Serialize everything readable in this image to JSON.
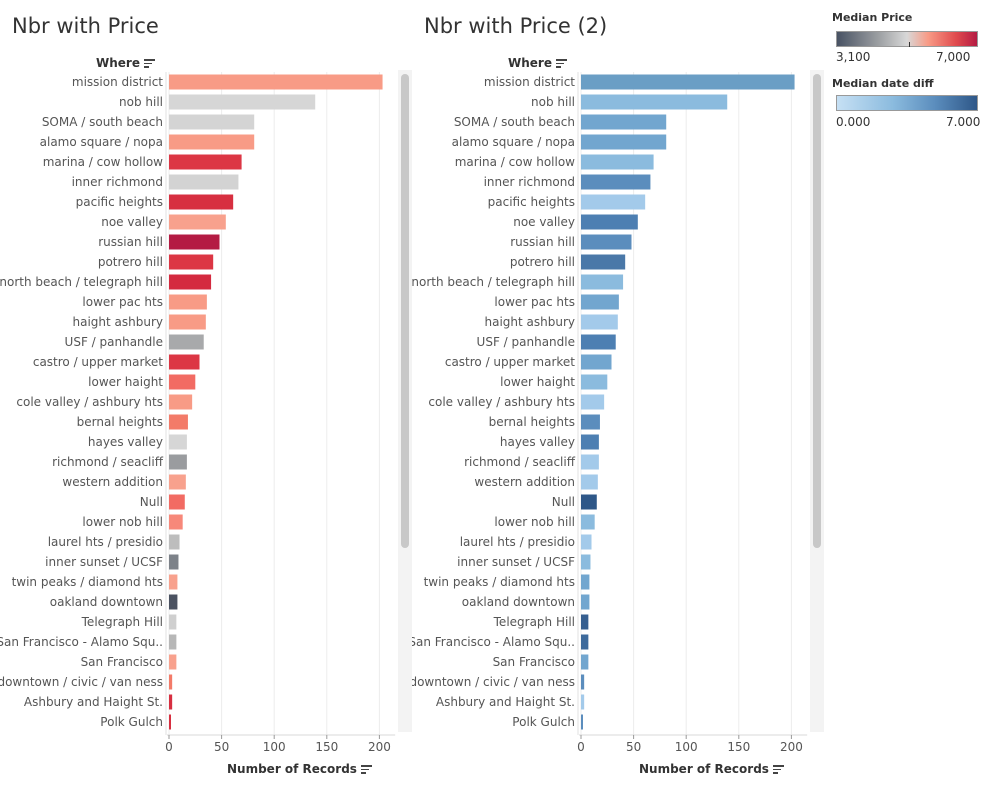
{
  "titles": {
    "left": "Nbr with Price",
    "right": "Nbr with Price (2)"
  },
  "row_header": "Where",
  "x_axis_title": "Number of Records",
  "legend_price": {
    "title": "Median Price",
    "min_label": "3,100",
    "max_label": "7,000"
  },
  "legend_date": {
    "title": "Median date diff",
    "min_label": "0.000",
    "max_label": "7.000"
  },
  "chart_data": [
    {
      "type": "bar",
      "orientation": "horizontal",
      "title": "Nbr with Price",
      "ylabel": "Where",
      "xlabel": "Number of Records",
      "xlim": [
        0,
        215
      ],
      "xticks": [
        0,
        50,
        100,
        150,
        200
      ],
      "color_by": "Median Price",
      "color_range": [
        3100,
        7000
      ],
      "categories": [
        "mission district",
        "nob hill",
        "SOMA / south beach",
        "alamo square / nopa",
        "marina / cow hollow",
        "inner richmond",
        "pacific heights",
        "noe valley",
        "russian hill",
        "potrero hill",
        "north beach / telegraph hill",
        "lower pac hts",
        "haight ashbury",
        "USF / panhandle",
        "castro / upper market",
        "lower haight",
        "cole valley / ashbury hts",
        "bernal heights",
        "hayes valley",
        "richmond / seacliff",
        "western addition",
        "Null",
        "lower nob hill",
        "laurel hts / presidio",
        "inner sunset / UCSF",
        "twin peaks / diamond hts",
        "oakland downtown",
        "Telegraph Hill",
        "San Francisco - Alamo Squ..",
        "San Francisco",
        "downtown / civic / van ness",
        "Ashbury and Haight St.",
        "Polk Gulch"
      ],
      "values": [
        203,
        139,
        81,
        81,
        69,
        66,
        61,
        54,
        48,
        42,
        40,
        36,
        35,
        33,
        29,
        25,
        22,
        18,
        17,
        17,
        16,
        15,
        13,
        10,
        9,
        8,
        8,
        7,
        7,
        7,
        3,
        3,
        1
      ],
      "colors": [
        "#f89b86",
        "#d6d6d6",
        "#d4d4d4",
        "#f89b86",
        "#dc3644",
        "#d3d3d3",
        "#d72f40",
        "#f8a18d",
        "#b41b43",
        "#dc3644",
        "#d42a3f",
        "#f89b86",
        "#f89b86",
        "#a8a9ab",
        "#dc3644",
        "#f26b63",
        "#f89b86",
        "#f37b69",
        "#d6d6d6",
        "#9a9c9f",
        "#f8a18d",
        "#f26b63",
        "#f7887a",
        "#bdbdbd",
        "#7d8289",
        "#f8a18d",
        "#4b5261",
        "#cfcfcf",
        "#b7b7b7",
        "#f8a18d",
        "#f37b69",
        "#d72f40",
        "#d72f40"
      ]
    },
    {
      "type": "bar",
      "orientation": "horizontal",
      "title": "Nbr with Price (2)",
      "ylabel": "Where",
      "xlabel": "Number of Records",
      "xlim": [
        0,
        215
      ],
      "xticks": [
        0,
        50,
        100,
        150,
        200
      ],
      "color_by": "Median date diff",
      "color_range": [
        0.0,
        7.0
      ],
      "categories": [
        "mission district",
        "nob hill",
        "SOMA / south beach",
        "alamo square / nopa",
        "marina / cow hollow",
        "inner richmond",
        "pacific heights",
        "noe valley",
        "russian hill",
        "potrero hill",
        "north beach / telegraph hill",
        "lower pac hts",
        "haight ashbury",
        "USF / panhandle",
        "castro / upper market",
        "lower haight",
        "cole valley / ashbury hts",
        "bernal heights",
        "hayes valley",
        "richmond / seacliff",
        "western addition",
        "Null",
        "lower nob hill",
        "laurel hts / presidio",
        "inner sunset / UCSF",
        "twin peaks / diamond hts",
        "oakland downtown",
        "Telegraph Hill",
        "San Francisco - Alamo Squ..",
        "San Francisco",
        "downtown / civic / van ness",
        "Ashbury and Haight St.",
        "Polk Gulch"
      ],
      "values": [
        203,
        139,
        81,
        81,
        69,
        66,
        61,
        54,
        48,
        42,
        40,
        36,
        35,
        33,
        29,
        25,
        22,
        18,
        17,
        17,
        16,
        15,
        13,
        10,
        9,
        8,
        8,
        7,
        7,
        7,
        3,
        3,
        1
      ],
      "colors": [
        "#6a9ec5",
        "#8bbbde",
        "#72a6cf",
        "#72a6cf",
        "#8bbbde",
        "#5b8dbd",
        "#a3caea",
        "#4d7fb2",
        "#5b8dbd",
        "#4a78a8",
        "#8bbbde",
        "#72a6cf",
        "#a3caea",
        "#4d7fb2",
        "#72a6cf",
        "#8bbbde",
        "#a3caea",
        "#5b8dbd",
        "#4d7fb2",
        "#a3caea",
        "#a3caea",
        "#2e5788",
        "#8bbbde",
        "#a3caea",
        "#8bbbde",
        "#72a6cf",
        "#72a6cf",
        "#365f90",
        "#3d6a9c",
        "#72a6cf",
        "#5b8dbd",
        "#a3caea",
        "#5b8dbd"
      ]
    }
  ]
}
